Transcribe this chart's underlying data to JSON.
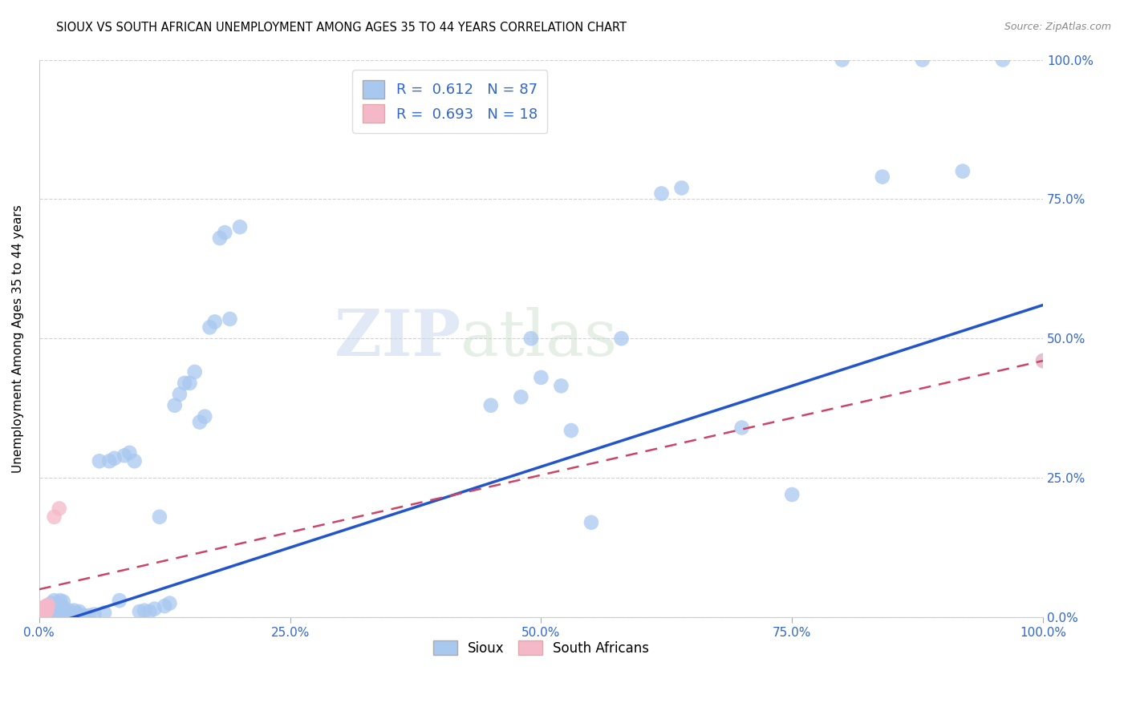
{
  "title": "SIOUX VS SOUTH AFRICAN UNEMPLOYMENT AMONG AGES 35 TO 44 YEARS CORRELATION CHART",
  "source": "Source: ZipAtlas.com",
  "ylabel_label": "Unemployment Among Ages 35 to 44 years",
  "watermark_zip": "ZIP",
  "watermark_atlas": "atlas",
  "sioux_color": "#a8c8f0",
  "sa_color": "#f5b8c8",
  "trendline_sioux_color": "#2255cc",
  "trendline_sa_color": "#cc4466",
  "background_color": "#ffffff",
  "xtick_labels": [
    "0.0%",
    "25.0%",
    "50.0%",
    "75.0%",
    "100.0%"
  ],
  "xtick_vals": [
    0.0,
    0.25,
    0.5,
    0.75,
    1.0
  ],
  "ytick_labels": [
    "0.0%",
    "25.0%",
    "50.0%",
    "75.0%",
    "100.0%"
  ],
  "ytick_vals": [
    0.0,
    0.25,
    0.5,
    0.75,
    1.0
  ],
  "xlim": [
    0.0,
    1.0
  ],
  "ylim": [
    0.0,
    1.0
  ],
  "grid_color": "#cccccc",
  "bottom_legend_sioux": "Sioux",
  "bottom_legend_sa": "South Africans",
  "sioux_x": [
    0.002,
    0.003,
    0.004,
    0.005,
    0.005,
    0.006,
    0.007,
    0.007,
    0.008,
    0.008,
    0.009,
    0.009,
    0.01,
    0.01,
    0.011,
    0.011,
    0.012,
    0.012,
    0.013,
    0.013,
    0.014,
    0.015,
    0.016,
    0.017,
    0.018,
    0.019,
    0.02,
    0.021,
    0.022,
    0.023,
    0.024,
    0.025,
    0.027,
    0.03,
    0.032,
    0.035,
    0.038,
    0.04,
    0.045,
    0.05,
    0.055,
    0.06,
    0.065,
    0.07,
    0.075,
    0.08,
    0.085,
    0.09,
    0.095,
    0.1,
    0.105,
    0.11,
    0.115,
    0.12,
    0.125,
    0.13,
    0.135,
    0.14,
    0.145,
    0.15,
    0.155,
    0.16,
    0.165,
    0.17,
    0.175,
    0.18,
    0.185,
    0.19,
    0.2,
    0.45,
    0.48,
    0.49,
    0.5,
    0.52,
    0.53,
    0.55,
    0.58,
    0.62,
    0.64,
    0.7,
    0.75,
    0.8,
    0.84,
    0.88,
    0.92,
    0.96,
    1.0
  ],
  "sioux_y": [
    0.005,
    0.003,
    0.008,
    0.002,
    0.01,
    0.007,
    0.012,
    0.004,
    0.015,
    0.008,
    0.018,
    0.003,
    0.01,
    0.02,
    0.005,
    0.015,
    0.008,
    0.025,
    0.003,
    0.012,
    0.018,
    0.03,
    0.008,
    0.012,
    0.005,
    0.025,
    0.015,
    0.03,
    0.01,
    0.02,
    0.028,
    0.003,
    0.005,
    0.012,
    0.008,
    0.012,
    0.007,
    0.01,
    0.003,
    0.003,
    0.005,
    0.28,
    0.008,
    0.28,
    0.285,
    0.03,
    0.29,
    0.295,
    0.28,
    0.01,
    0.012,
    0.01,
    0.015,
    0.18,
    0.02,
    0.025,
    0.38,
    0.4,
    0.42,
    0.42,
    0.44,
    0.35,
    0.36,
    0.52,
    0.53,
    0.68,
    0.69,
    0.535,
    0.7,
    0.38,
    0.395,
    0.5,
    0.43,
    0.415,
    0.335,
    0.17,
    0.5,
    0.76,
    0.77,
    0.34,
    0.22,
    1.0,
    0.79,
    1.0,
    0.8,
    1.0,
    0.46
  ],
  "sa_x": [
    0.001,
    0.002,
    0.003,
    0.003,
    0.004,
    0.004,
    0.005,
    0.005,
    0.006,
    0.006,
    0.007,
    0.007,
    0.008,
    0.008,
    0.009,
    0.015,
    0.02,
    1.0
  ],
  "sa_y": [
    0.005,
    0.008,
    0.005,
    0.012,
    0.008,
    0.015,
    0.01,
    0.018,
    0.008,
    0.015,
    0.01,
    0.02,
    0.012,
    0.018,
    0.022,
    0.18,
    0.195,
    0.46
  ],
  "blue_trend_x0": 0.0,
  "blue_trend_y0": -0.02,
  "blue_trend_x1": 1.0,
  "blue_trend_y1": 0.56,
  "pink_trend_x0": 0.0,
  "pink_trend_y0": 0.05,
  "pink_trend_x1": 1.0,
  "pink_trend_y1": 0.46
}
